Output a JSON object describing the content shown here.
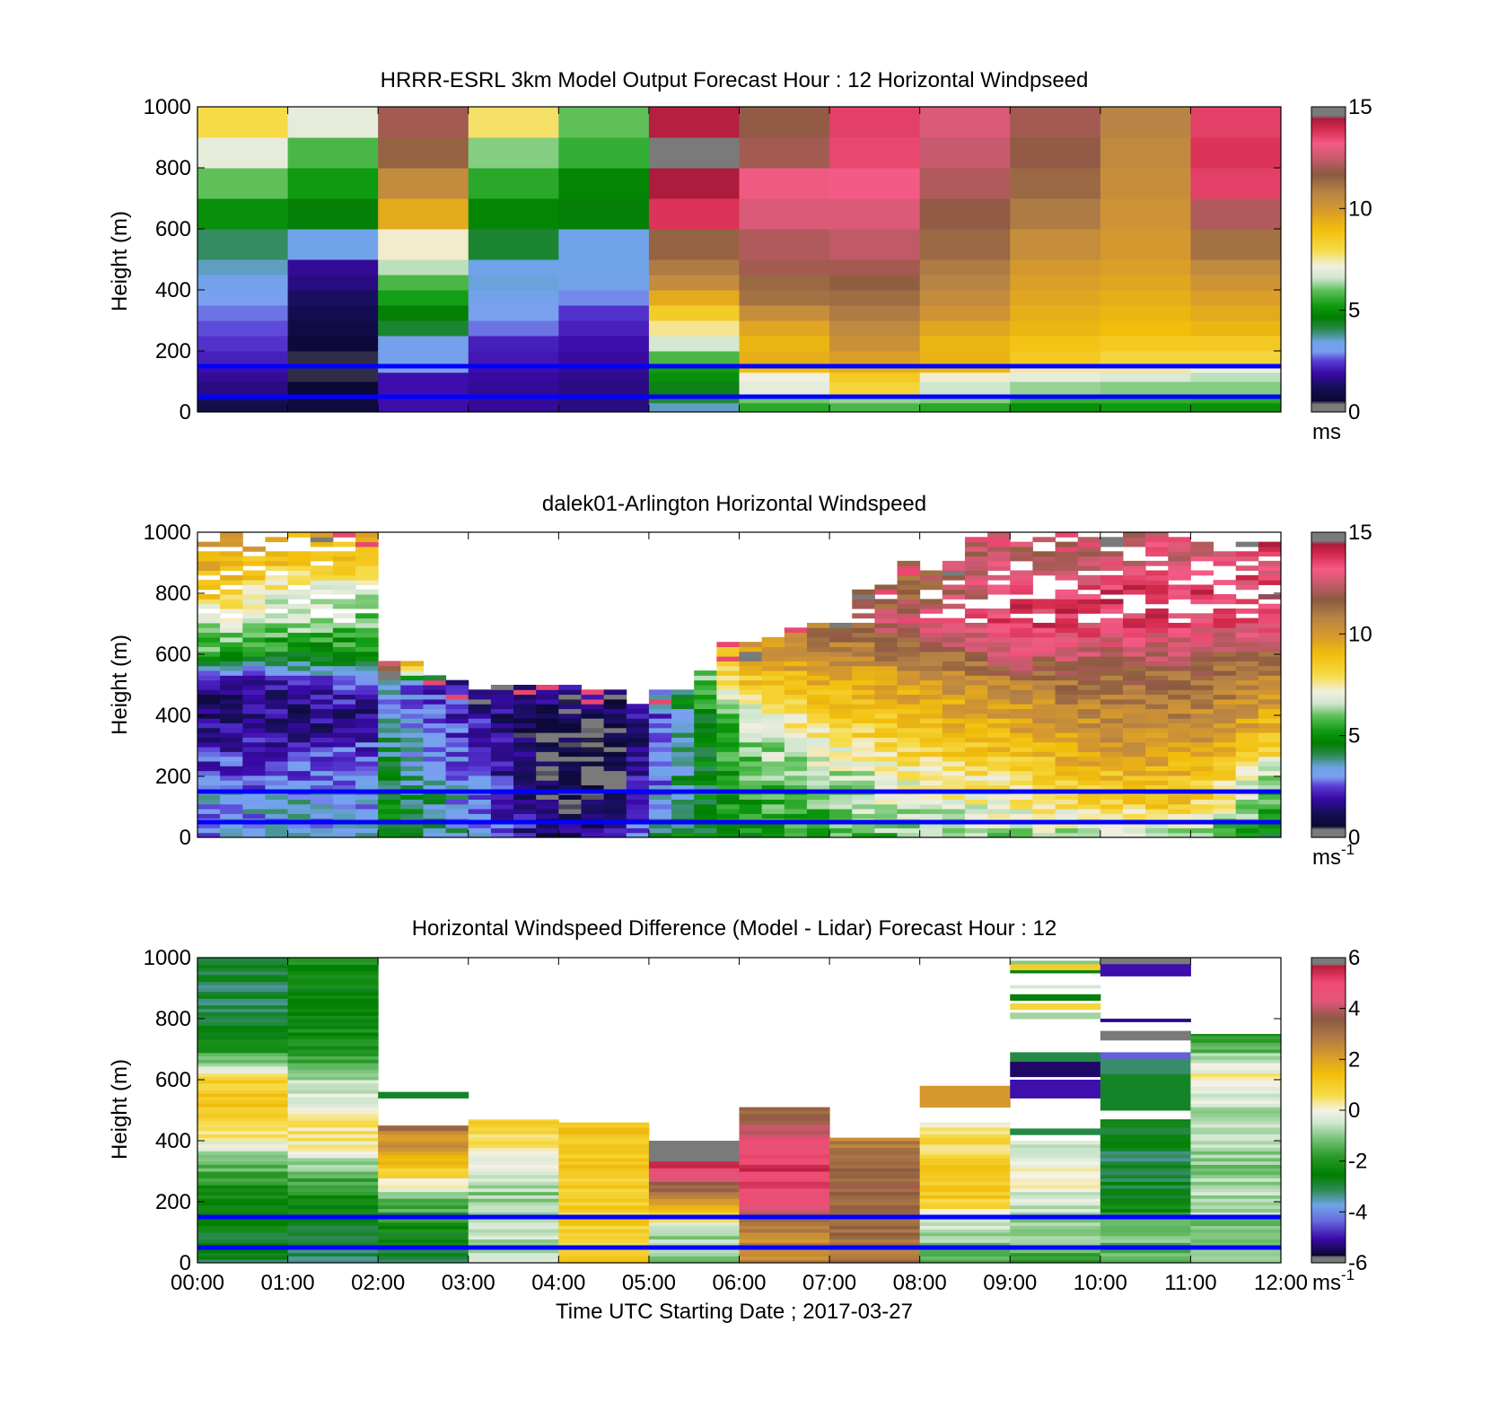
{
  "figure": {
    "xlabel": "Time UTC  Starting Date ; 2017-03-27",
    "x_ticks": [
      "00:00",
      "01:00",
      "02:00",
      "03:00",
      "04:00",
      "05:00",
      "06:00",
      "07:00",
      "08:00",
      "09:00",
      "10:00",
      "11:00",
      "12:00"
    ]
  },
  "chart_data": [
    {
      "type": "heatmap",
      "title": "HRRR-ESRL 3km Model Output   Forecast Hour : 12 Horizontal Windpseed",
      "ylabel": "Height (m)",
      "ylim": [
        0,
        1000
      ],
      "y_ticks": [
        "0",
        "200",
        "400",
        "600",
        "800",
        "1000"
      ],
      "xlim_hours": [
        0,
        12
      ],
      "colorbar": {
        "ticks": [
          "0",
          "5",
          "10",
          "15"
        ],
        "unit": "ms",
        "range": [
          0,
          15
        ],
        "palette": "wind"
      },
      "reference_lines_m": [
        50,
        150
      ],
      "reference_line_color": "#0000ff",
      "columns_hours": [
        0,
        1,
        2,
        3,
        4,
        5,
        6,
        7,
        8,
        9,
        10,
        11
      ],
      "levels_m": [
        0,
        30,
        50,
        100,
        130,
        150,
        200,
        250,
        300,
        350,
        400,
        450,
        500,
        600,
        700,
        800,
        900,
        1000
      ],
      "values_ms": [
        [
          1.0,
          1.2,
          1.6,
          1.8,
          2.0,
          2.2,
          2.4,
          2.6,
          2.8,
          3.0,
          3.3,
          3.6,
          4.0,
          5.0,
          6.0,
          7.0,
          8.0
        ],
        [
          0.8,
          0.8,
          0.6,
          0.5,
          0.5,
          0.5,
          0.7,
          0.9,
          1.1,
          1.3,
          1.6,
          1.8,
          3.4,
          4.6,
          5.2,
          5.8,
          7.0
        ],
        [
          2.0,
          2.0,
          2.0,
          2.0,
          3.0,
          3.2,
          3.2,
          4.3,
          4.6,
          5.3,
          5.8,
          6.5,
          7.3,
          9.5,
          10.5,
          11.5,
          12.0
        ],
        [
          1.8,
          1.8,
          1.8,
          1.9,
          2.0,
          2.1,
          2.2,
          2.8,
          3.1,
          3.3,
          3.5,
          3.4,
          4.3,
          4.8,
          5.5,
          6.2,
          7.8
        ],
        [
          1.6,
          1.6,
          1.6,
          1.7,
          1.8,
          1.9,
          2.0,
          2.2,
          2.4,
          2.9,
          3.3,
          3.4,
          3.4,
          4.6,
          4.8,
          5.6,
          6.0
        ],
        [
          3.6,
          4.2,
          4.5,
          5.0,
          5.2,
          5.8,
          6.7,
          7.6,
          8.5,
          9.5,
          10.5,
          11.0,
          11.5,
          13.8,
          14.4,
          14.6,
          14.3
        ],
        [
          5.5,
          6.1,
          7.0,
          7.2,
          9.0,
          9.4,
          9.2,
          9.6,
          10.4,
          11.2,
          11.4,
          12.0,
          12.2,
          12.8,
          13.1,
          12.0,
          11.8
        ],
        [
          5.8,
          6.3,
          8.2,
          8.6,
          9.4,
          9.8,
          10.3,
          10.6,
          11.0,
          11.3,
          11.6,
          12.0,
          12.4,
          12.8,
          13.2,
          13.5,
          13.6
        ],
        [
          5.5,
          6.2,
          6.6,
          7.3,
          9.2,
          9.3,
          9.2,
          9.6,
          10.2,
          10.5,
          10.8,
          11.0,
          11.4,
          11.8,
          12.2,
          12.5,
          12.8
        ],
        [
          5.0,
          5.6,
          6.3,
          7.0,
          7.5,
          8.6,
          8.8,
          9.2,
          9.4,
          9.6,
          9.8,
          10.0,
          10.4,
          11.0,
          11.4,
          11.8,
          12.0
        ],
        [
          5.2,
          5.6,
          6.2,
          6.8,
          7.5,
          8.2,
          8.6,
          9.0,
          9.2,
          9.4,
          9.6,
          9.8,
          10.0,
          10.2,
          10.4,
          10.6,
          10.8
        ],
        [
          5.0,
          5.5,
          6.2,
          6.5,
          7.2,
          8.2,
          8.6,
          9.2,
          9.5,
          9.8,
          10.2,
          10.6,
          11.2,
          12.2,
          13.6,
          13.8,
          13.6
        ]
      ]
    },
    {
      "type": "heatmap",
      "title": "dalek01-Arlington  Horizontal Windspeed",
      "ylabel": "Height (m)",
      "ylim": [
        0,
        1000
      ],
      "y_ticks": [
        "0",
        "200",
        "400",
        "600",
        "800",
        "1000"
      ],
      "xlim_hours": [
        0,
        12
      ],
      "colorbar": {
        "ticks": [
          "0",
          "5",
          "10",
          "15"
        ],
        "unit": "ms",
        "unit_exp": "-1",
        "range": [
          0,
          15
        ],
        "palette": "wind"
      },
      "reference_lines_m": [
        50,
        150
      ],
      "reference_line_color": "#0000ff",
      "profile_anchors": [
        {
          "t": 0.0,
          "tops": 1000,
          "h": [
            0,
            100,
            200,
            300,
            400,
            500,
            600,
            700,
            800,
            900,
            1000
          ],
          "v": [
            3.0,
            3.2,
            2.6,
            1.8,
            1.4,
            1.6,
            5.5,
            6.8,
            9.0,
            9.6,
            10.5
          ]
        },
        {
          "t": 1.0,
          "tops": 1000,
          "h": [
            0,
            100,
            200,
            300,
            400,
            500,
            600,
            700,
            800,
            900,
            1000
          ],
          "v": [
            3.2,
            3.3,
            2.8,
            2.0,
            1.6,
            2.0,
            5.0,
            6.2,
            7.2,
            8.6,
            9.5
          ]
        },
        {
          "t": 1.9,
          "tops": 1000,
          "h": [
            0,
            100,
            200,
            300,
            400,
            500,
            600,
            700,
            800,
            900,
            1000
          ],
          "v": [
            3.4,
            3.0,
            2.8,
            2.2,
            1.6,
            2.6,
            5.2,
            6.0,
            7.0,
            8.4,
            9.2
          ]
        },
        {
          "t": 2.1,
          "tops": 560,
          "h": [
            0,
            100,
            200,
            300,
            400,
            500,
            560
          ],
          "v": [
            4.8,
            4.6,
            4.2,
            4.0,
            3.6,
            3.0,
            13.5
          ]
        },
        {
          "t": 3.0,
          "tops": 500,
          "h": [
            0,
            100,
            200,
            300,
            400,
            500
          ],
          "v": [
            3.4,
            3.2,
            2.8,
            2.4,
            2.0,
            1.8
          ]
        },
        {
          "t": 4.0,
          "tops": 470,
          "h": [
            0,
            100,
            200,
            300,
            400,
            470
          ],
          "v": [
            1.2,
            0.8,
            0.6,
            0.6,
            0.8,
            1.6
          ]
        },
        {
          "t": 4.6,
          "tops": 470,
          "h": [
            0,
            100,
            200,
            300,
            400,
            470
          ],
          "v": [
            1.8,
            0.7,
            0.5,
            0.4,
            0.8,
            1.4
          ]
        },
        {
          "t": 5.3,
          "tops": 440,
          "h": [
            0,
            100,
            200,
            300,
            400,
            440
          ],
          "v": [
            4.6,
            4.0,
            3.6,
            3.2,
            3.4,
            4.0
          ]
        },
        {
          "t": 6.0,
          "tops": 640,
          "h": [
            0,
            100,
            200,
            300,
            400,
            500,
            640
          ],
          "v": [
            5.0,
            5.2,
            5.6,
            6.0,
            6.6,
            8.5,
            9.5
          ]
        },
        {
          "t": 7.0,
          "tops": 720,
          "h": [
            0,
            100,
            200,
            300,
            400,
            500,
            600,
            720
          ],
          "v": [
            5.4,
            6.0,
            6.6,
            7.4,
            8.6,
            9.4,
            10.8,
            11.2
          ]
        },
        {
          "t": 8.0,
          "tops": 900,
          "h": [
            0,
            100,
            200,
            300,
            400,
            500,
            600,
            700,
            800,
            900
          ],
          "v": [
            6.2,
            7.0,
            7.4,
            8.6,
            9.2,
            9.8,
            11.0,
            13.0,
            11.4,
            12.0
          ]
        },
        {
          "t": 9.0,
          "tops": 1000,
          "h": [
            0,
            100,
            200,
            300,
            400,
            500,
            600,
            700,
            800,
            900,
            1000
          ],
          "v": [
            6.4,
            7.2,
            8.0,
            9.0,
            9.8,
            10.8,
            12.8,
            13.6,
            13.4,
            12.4,
            12.0
          ]
        },
        {
          "t": 10.0,
          "tops": 1000,
          "h": [
            0,
            100,
            200,
            300,
            400,
            500,
            600,
            700,
            800,
            900,
            1000
          ],
          "v": [
            6.6,
            8.2,
            9.0,
            10.0,
            10.6,
            11.2,
            12.6,
            13.6,
            13.8,
            12.6,
            12.4
          ]
        },
        {
          "t": 11.0,
          "tops": 1000,
          "h": [
            0,
            100,
            200,
            300,
            400,
            500,
            600,
            700,
            800,
            900,
            1000
          ],
          "v": [
            6.2,
            8.6,
            9.2,
            10.0,
            10.8,
            11.4,
            12.2,
            13.4,
            13.8,
            13.0,
            12.2
          ]
        },
        {
          "t": 11.85,
          "tops": 960,
          "h": [
            0,
            100,
            200,
            300,
            400,
            500,
            600,
            700,
            800,
            900,
            960
          ],
          "v": [
            4.8,
            5.6,
            6.6,
            8.6,
            9.6,
            10.6,
            11.6,
            13.6,
            13.8,
            12.6,
            15.5
          ]
        }
      ]
    },
    {
      "type": "heatmap",
      "title": "Horizontal Windspeed Difference (Model - Lidar) Forecast Hour : 12",
      "ylabel": "Height (m)",
      "ylim": [
        0,
        1000
      ],
      "y_ticks": [
        "0",
        "200",
        "400",
        "600",
        "800",
        "1000"
      ],
      "xlim_hours": [
        0,
        12
      ],
      "colorbar": {
        "ticks": [
          "-6",
          "-4",
          "-2",
          "0",
          "2",
          "4",
          "6"
        ],
        "unit": "ms",
        "unit_exp": "-1",
        "range": [
          -6,
          6
        ],
        "palette": "diff"
      },
      "reference_lines_m": [
        50,
        150
      ],
      "reference_line_color": "#0000ff",
      "columns": [
        {
          "h": [
            0,
            100,
            200,
            300,
            400,
            500,
            600,
            700,
            800,
            1000
          ],
          "v": [
            -3.0,
            -2.6,
            -2.4,
            -1.5,
            0.2,
            1.2,
            0.8,
            -2.2,
            -3.2,
            -2.8
          ]
        },
        {
          "h": [
            0,
            100,
            200,
            300,
            400,
            500,
            600,
            700,
            800,
            1000
          ],
          "v": [
            -3.2,
            -2.8,
            -2.2,
            -1.2,
            0.4,
            0.2,
            -0.8,
            -2.0,
            -2.4,
            -2.2
          ]
        },
        {
          "h": [
            0,
            100,
            200,
            300,
            400,
            450
          ],
          "v": [
            -2.8,
            -2.4,
            -1.2,
            1.2,
            2.4,
            3.2
          ],
          "extra": [
            [
              540,
              560,
              -2.8
            ]
          ]
        },
        {
          "h": [
            0,
            100,
            200,
            300,
            400,
            470
          ],
          "v": [
            -0.6,
            -0.6,
            -1.0,
            -0.4,
            0.6,
            1.0
          ]
        },
        {
          "h": [
            0,
            100,
            200,
            300,
            400,
            460
          ],
          "v": [
            1.0,
            1.0,
            1.0,
            1.2,
            1.2,
            1.2
          ]
        },
        {
          "h": [
            0,
            100,
            200,
            300,
            350,
            400
          ],
          "v": [
            -1.0,
            -0.8,
            2.6,
            4.8,
            7.0,
            7.0
          ]
        },
        {
          "h": [
            0,
            100,
            200,
            300,
            400,
            450,
            510
          ],
          "v": [
            2.6,
            2.6,
            4.8,
            5.2,
            4.6,
            3.6,
            3.4
          ]
        },
        {
          "h": [
            0,
            100,
            200,
            300,
            400,
            410
          ],
          "v": [
            3.0,
            3.2,
            3.4,
            3.4,
            2.8,
            1.2
          ]
        },
        {
          "h": [
            0,
            100,
            200,
            300,
            400,
            460
          ],
          "v": [
            -1.2,
            -0.8,
            1.0,
            1.0,
            0.6,
            -0.2
          ],
          "extra": [
            [
              510,
              580,
              2.2
            ]
          ]
        },
        {
          "h": [
            0,
            100,
            200,
            300,
            400
          ],
          "v": [
            -1.6,
            -1.0,
            -0.4,
            0.2,
            -0.6
          ],
          "extra": [
            [
              420,
              440,
              -3.0
            ],
            [
              540,
              600,
              -5.0
            ],
            [
              610,
              660,
              -5.4
            ],
            [
              660,
              690,
              -3.0
            ],
            [
              800,
              820,
              -0.8
            ],
            [
              830,
              850,
              0.8
            ],
            [
              860,
              880,
              -2.6
            ],
            [
              900,
              910,
              -0.4
            ],
            [
              950,
              960,
              -2.6
            ],
            [
              960,
              980,
              1.0
            ],
            [
              980,
              990,
              -1.0
            ]
          ]
        },
        {
          "h": [
            0,
            100,
            200,
            300,
            400,
            470
          ],
          "v": [
            -1.2,
            -1.2,
            -2.6,
            -3.0,
            -2.8,
            -2.4
          ],
          "extra": [
            [
              500,
              600,
              -2.8
            ],
            [
              600,
              620,
              -2.8
            ],
            [
              620,
              670,
              -3.2
            ],
            [
              670,
              690,
              -4.4
            ],
            [
              730,
              760,
              -5.8
            ],
            [
              790,
              800,
              -5.2
            ],
            [
              940,
              980,
              -5.0
            ],
            [
              980,
              1000,
              7.0
            ]
          ]
        },
        {
          "h": [
            0,
            100,
            200,
            300,
            400,
            500,
            600,
            700,
            750
          ],
          "v": [
            -1.0,
            -1.2,
            -0.6,
            -1.0,
            -0.8,
            -0.6,
            0.4,
            -1.4,
            -2.0
          ]
        }
      ]
    }
  ]
}
